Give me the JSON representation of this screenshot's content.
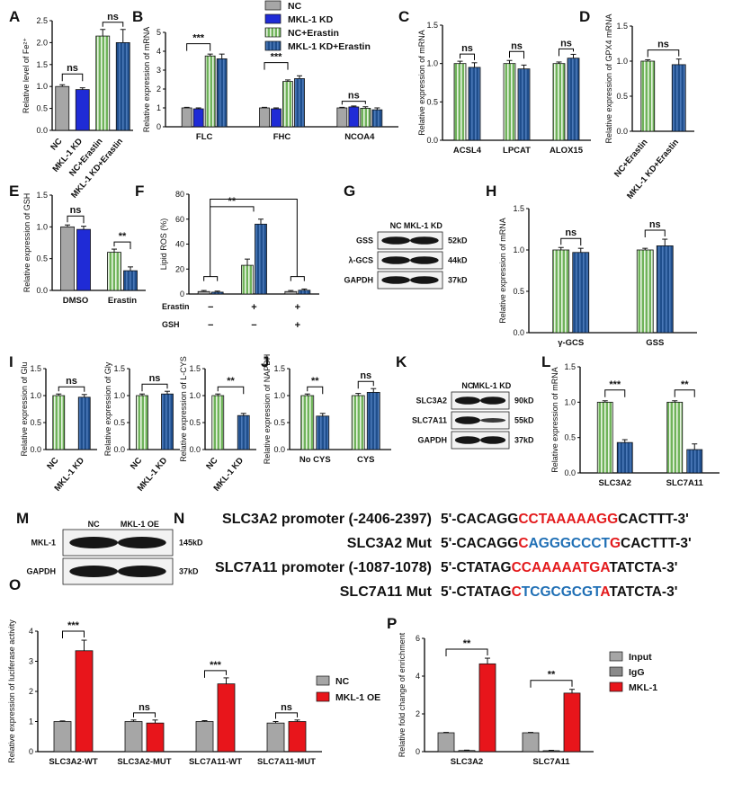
{
  "colors": {
    "nc": "#a6a6a6",
    "kd": "#1f2bd6",
    "nc_erastin": "#6fb35a",
    "kd_erastin": "#1f4e8c",
    "oe": "#e8151b",
    "igg": "#8a8a8a",
    "seq_red": "#e31a1c",
    "seq_blue": "#1f6fb5"
  },
  "chart_data": [
    {
      "panel": "A",
      "type": "bar",
      "ylabel": "Relative level of Fe²⁺",
      "ylim": [
        0,
        2.5
      ],
      "yticks": [
        "0.0",
        "0.5",
        "1.0",
        "1.5",
        "2.0",
        "2.5"
      ],
      "categories": [
        "NC",
        "MKL-1 KD",
        "NC+Erastin",
        "MKL-1 KD+Erastin"
      ],
      "values": [
        1.0,
        0.93,
        2.15,
        2.0
      ],
      "errors": [
        0.04,
        0.04,
        0.15,
        0.3
      ],
      "significance": [
        {
          "between": [
            "NC",
            "MKL-1 KD"
          ],
          "label": "ns"
        },
        {
          "between": [
            "NC+Erastin",
            "MKL-1 KD+Erastin"
          ],
          "label": "ns"
        }
      ]
    },
    {
      "panel": "B",
      "type": "bar",
      "ylabel": "Relative expression of mRNA",
      "ylim": [
        0,
        5
      ],
      "yticks": [
        "0",
        "1",
        "2",
        "3",
        "4",
        "5"
      ],
      "categories": [
        "FLC",
        "FHC",
        "NCOA4"
      ],
      "legend": [
        "NC",
        "MKL-1 KD",
        "NC+Erastin",
        "MKL-1 KD+Erastin"
      ],
      "series": [
        {
          "name": "NC",
          "values": [
            1.0,
            1.0,
            1.0
          ],
          "errors": [
            0.03,
            0.03,
            0.03
          ]
        },
        {
          "name": "MKL-1 KD",
          "values": [
            0.95,
            0.95,
            1.05
          ],
          "errors": [
            0.05,
            0.05,
            0.05
          ]
        },
        {
          "name": "NC+Erastin",
          "values": [
            3.75,
            2.4,
            0.98
          ],
          "errors": [
            0.1,
            0.08,
            0.08
          ]
        },
        {
          "name": "MKL-1 KD+Erastin",
          "values": [
            3.6,
            2.55,
            0.9
          ],
          "errors": [
            0.25,
            0.15,
            0.1
          ]
        }
      ],
      "significance": [
        {
          "category": "FLC",
          "label": "***"
        },
        {
          "category": "FHC",
          "label": "***"
        },
        {
          "category": "NCOA4",
          "label": "ns"
        }
      ]
    },
    {
      "panel": "C",
      "type": "bar",
      "ylabel": "Relative expression of mRNA",
      "ylim": [
        0,
        1.5
      ],
      "yticks": [
        "0.0",
        "0.5",
        "1.0",
        "1.5"
      ],
      "categories": [
        "ACSL4",
        "LPCAT",
        "ALOX15"
      ],
      "series": [
        {
          "name": "NC",
          "values": [
            1.0,
            1.0,
            1.0
          ],
          "errors": [
            0.03,
            0.04,
            0.02
          ]
        },
        {
          "name": "MKL-1 KD",
          "values": [
            0.95,
            0.93,
            1.07
          ],
          "errors": [
            0.06,
            0.05,
            0.05
          ]
        }
      ],
      "significance": [
        {
          "category": "ACSL4",
          "label": "ns"
        },
        {
          "category": "LPCAT",
          "label": "ns"
        },
        {
          "category": "ALOX15",
          "label": "ns"
        }
      ]
    },
    {
      "panel": "D",
      "type": "bar",
      "ylabel": "Relative expression of GPX4 mRNA",
      "ylim": [
        0,
        1.5
      ],
      "yticks": [
        "0.0",
        "0.5",
        "1.0",
        "1.5"
      ],
      "categories": [
        "NC+Erastin",
        "MKL-1 KD+Erastin"
      ],
      "values": [
        1.0,
        0.95
      ],
      "errors": [
        0.02,
        0.08
      ],
      "significance": [
        {
          "between": [
            "NC+Erastin",
            "MKL-1 KD+Erastin"
          ],
          "label": "ns"
        }
      ]
    },
    {
      "panel": "E",
      "type": "bar",
      "ylabel": "Relative expression of GSH",
      "ylim": [
        0,
        1.5
      ],
      "yticks": [
        "0.0",
        "0.5",
        "1.0",
        "1.5"
      ],
      "categories": [
        "DMSO",
        "Erastin"
      ],
      "series": [
        {
          "name": "NC",
          "values": [
            1.0,
            0.6
          ],
          "errors": [
            0.03,
            0.05
          ]
        },
        {
          "name": "MKL-1 KD",
          "values": [
            0.96,
            0.31
          ],
          "errors": [
            0.05,
            0.06
          ]
        }
      ],
      "significance": [
        {
          "category": "DMSO",
          "label": "ns"
        },
        {
          "category": "Erastin",
          "label": "**"
        }
      ]
    },
    {
      "panel": "F",
      "type": "bar",
      "ylabel": "Lipid ROS (%)",
      "ylim": [
        0,
        80
      ],
      "yticks": [
        "0",
        "20",
        "40",
        "60",
        "80"
      ],
      "row_labels": [
        "Erastin",
        "GSH"
      ],
      "conditions": [
        [
          "−",
          "−"
        ],
        [
          "+",
          "−"
        ],
        [
          "+",
          "+"
        ]
      ],
      "series": [
        {
          "name": "NC",
          "values": [
            2,
            23,
            2
          ],
          "errors": [
            0.8,
            5,
            0.8
          ]
        },
        {
          "name": "MKL-1 KD",
          "values": [
            1.5,
            56,
            3
          ],
          "errors": [
            0.8,
            4,
            1
          ]
        }
      ],
      "significance": [
        {
          "label": "**"
        }
      ]
    },
    {
      "panel": "H",
      "type": "bar",
      "ylabel": "Relative expression of mRNA",
      "ylim": [
        0,
        1.5
      ],
      "yticks": [
        "0.0",
        "0.5",
        "1.0",
        "1.5"
      ],
      "categories": [
        "γ-GCS",
        "GSS"
      ],
      "series": [
        {
          "name": "NC",
          "values": [
            1.0,
            1.0
          ],
          "errors": [
            0.03,
            0.02
          ]
        },
        {
          "name": "MKL-1 KD",
          "values": [
            0.97,
            1.05
          ],
          "errors": [
            0.05,
            0.08
          ]
        }
      ],
      "significance": [
        {
          "category": "γ-GCS",
          "label": "ns"
        },
        {
          "category": "GSS",
          "label": "ns"
        }
      ]
    },
    {
      "panel": "I1",
      "type": "bar",
      "ylabel": "Relative expression of Glu",
      "ylim": [
        0,
        1.5
      ],
      "yticks": [
        "0.0",
        "0.5",
        "1.0",
        "1.5"
      ],
      "categories": [
        "NC",
        "MKL-1 KD"
      ],
      "values": [
        1.0,
        0.97
      ],
      "errors": [
        0.03,
        0.05
      ],
      "significance": [
        {
          "label": "ns"
        }
      ]
    },
    {
      "panel": "I2",
      "type": "bar",
      "ylabel": "Relative expression of Gly",
      "ylim": [
        0,
        1.5
      ],
      "yticks": [
        "0.0",
        "0.5",
        "1.0",
        "1.5"
      ],
      "categories": [
        "NC",
        "MKL-1 KD"
      ],
      "values": [
        1.0,
        1.03
      ],
      "errors": [
        0.03,
        0.05
      ],
      "significance": [
        {
          "label": "ns"
        }
      ]
    },
    {
      "panel": "I3",
      "type": "bar",
      "ylabel": "Relative expression of L-CYS",
      "ylim": [
        0,
        1.5
      ],
      "yticks": [
        "0.0",
        "0.5",
        "1.0",
        "1.5"
      ],
      "categories": [
        "NC",
        "MKL-1 KD"
      ],
      "values": [
        1.0,
        0.63
      ],
      "errors": [
        0.03,
        0.04
      ],
      "significance": [
        {
          "label": "**"
        }
      ]
    },
    {
      "panel": "J",
      "type": "bar",
      "ylabel": "Relative expression of NAPDH",
      "ylim": [
        0,
        1.5
      ],
      "yticks": [
        "0.0",
        "0.5",
        "1.0",
        "1.5"
      ],
      "categories": [
        "No CYS",
        "CYS"
      ],
      "series": [
        {
          "name": "NC",
          "values": [
            1.0,
            1.0
          ],
          "errors": [
            0.03,
            0.04
          ]
        },
        {
          "name": "MKL-1 KD",
          "values": [
            0.62,
            1.06
          ],
          "errors": [
            0.05,
            0.07
          ]
        }
      ],
      "significance": [
        {
          "category": "No CYS",
          "label": "**"
        },
        {
          "category": "CYS",
          "label": "ns"
        }
      ]
    },
    {
      "panel": "L",
      "type": "bar",
      "ylabel": "Relative expression of mRNA",
      "ylim": [
        0,
        1.5
      ],
      "yticks": [
        "0.0",
        "0.5",
        "1.0",
        "1.5"
      ],
      "categories": [
        "SLC3A2",
        "SLC7A11"
      ],
      "series": [
        {
          "name": "NC",
          "values": [
            1.0,
            1.0
          ],
          "errors": [
            0.02,
            0.02
          ]
        },
        {
          "name": "MKL-1 KD",
          "values": [
            0.43,
            0.33
          ],
          "errors": [
            0.04,
            0.08
          ]
        }
      ],
      "significance": [
        {
          "category": "SLC3A2",
          "label": "***"
        },
        {
          "category": "SLC7A11",
          "label": "**"
        }
      ]
    },
    {
      "panel": "O",
      "type": "bar",
      "ylabel": "Relative expression of luciferase activity",
      "ylim": [
        0,
        4
      ],
      "yticks": [
        "0",
        "1",
        "2",
        "3",
        "4"
      ],
      "categories": [
        "SLC3A2-WT",
        "SLC3A2-MUT",
        "SLC7A11-WT",
        "SLC7A11-MUT"
      ],
      "legend": [
        "NC",
        "MKL-1 OE"
      ],
      "series": [
        {
          "name": "NC",
          "values": [
            1.0,
            1.0,
            1.0,
            0.95
          ],
          "errors": [
            0.02,
            0.05,
            0.03,
            0.05
          ]
        },
        {
          "name": "MKL-1 OE",
          "values": [
            3.35,
            0.95,
            2.25,
            1.0
          ],
          "errors": [
            0.35,
            0.1,
            0.2,
            0.05
          ]
        }
      ],
      "significance": [
        {
          "category": "SLC3A2-WT",
          "label": "***"
        },
        {
          "category": "SLC3A2-MUT",
          "label": "ns"
        },
        {
          "category": "SLC7A11-WT",
          "label": "***"
        },
        {
          "category": "SLC7A11-MUT",
          "label": "ns"
        }
      ]
    },
    {
      "panel": "P",
      "type": "bar",
      "ylabel": "Relative fold change of enrichment",
      "ylim": [
        0,
        6
      ],
      "yticks": [
        "0",
        "2",
        "4",
        "6"
      ],
      "categories": [
        "SLC3A2",
        "SLC7A11"
      ],
      "legend": [
        "Input",
        "IgG",
        "MKL-1"
      ],
      "series": [
        {
          "name": "Input",
          "values": [
            1.0,
            1.0
          ],
          "errors": [
            0.02,
            0.02
          ]
        },
        {
          "name": "IgG",
          "values": [
            0.06,
            0.05
          ],
          "errors": [
            0.02,
            0.02
          ]
        },
        {
          "name": "MKL-1",
          "values": [
            4.65,
            3.1
          ],
          "errors": [
            0.3,
            0.2
          ]
        }
      ],
      "significance": [
        {
          "category": "SLC3A2",
          "label": "**"
        },
        {
          "category": "SLC7A11",
          "label": "**"
        }
      ]
    }
  ],
  "blots": {
    "G": {
      "header": [
        "NC",
        "MKL-1 KD"
      ],
      "rows": [
        {
          "label": "GSS",
          "kd": "52kD"
        },
        {
          "label": "λ-GCS",
          "kd": "44kD"
        },
        {
          "label": "GAPDH",
          "kd": "37kD"
        }
      ]
    },
    "K": {
      "header": [
        "NC",
        "MKL-1 KD"
      ],
      "rows": [
        {
          "label": "SLC3A2",
          "kd": "90kD"
        },
        {
          "label": "SLC7A11",
          "kd": "55kD"
        },
        {
          "label": "GAPDH",
          "kd": "37kD"
        }
      ]
    },
    "M": {
      "header": [
        "NC",
        "MKL-1 OE"
      ],
      "rows": [
        {
          "label": "MKL-1",
          "kd": "145kD"
        },
        {
          "label": "GAPDH",
          "kd": "37kD"
        }
      ]
    }
  },
  "sequences": [
    {
      "label": "SLC3A2 promoter (-2406-2397)",
      "parts": [
        [
          "5'-CACAGG",
          "k"
        ],
        [
          "CCTAAAAAGG",
          "r"
        ],
        [
          "CACTTT-3'",
          "k"
        ]
      ]
    },
    {
      "label": "SLC3A2 Mut",
      "parts": [
        [
          "5'-CACAGG",
          "k"
        ],
        [
          "C",
          "r"
        ],
        [
          "AGGGCCCT",
          "b"
        ],
        [
          "G",
          "r"
        ],
        [
          "CACTTT-3'",
          "k"
        ]
      ]
    },
    {
      "label": "SLC7A11 promoter (-1087-1078)",
      "parts": [
        [
          "5'-CTATAG",
          "k"
        ],
        [
          "CCAAAAATGA",
          "r"
        ],
        [
          "TATCTA-3'",
          "k"
        ]
      ]
    },
    {
      "label": "SLC7A11 Mut",
      "parts": [
        [
          "5'-CTATAG",
          "k"
        ],
        [
          "C",
          "r"
        ],
        [
          "TCGCGCGT",
          "b"
        ],
        [
          "A",
          "r"
        ],
        [
          "TATCTA-3'",
          "k"
        ]
      ]
    }
  ],
  "panel_labels": [
    "A",
    "B",
    "C",
    "D",
    "E",
    "F",
    "G",
    "H",
    "I",
    "J",
    "K",
    "L",
    "M",
    "N",
    "O",
    "P"
  ]
}
